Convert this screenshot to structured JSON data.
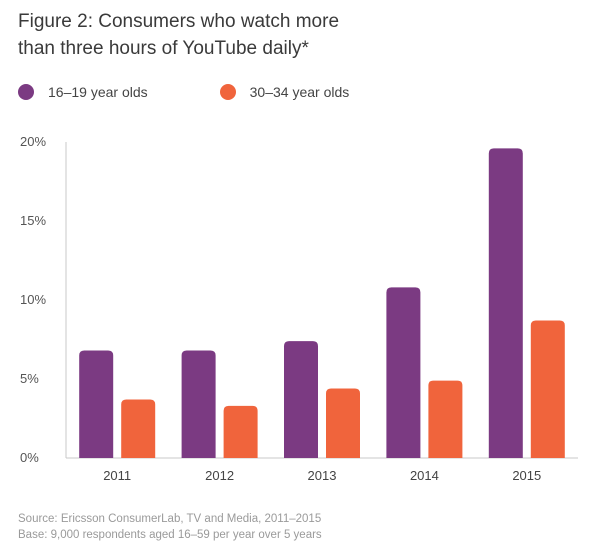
{
  "chart_data": {
    "type": "bar",
    "title": "Figure 2: Consumers who watch more than three hours of YouTube daily*",
    "title_lines": [
      "Figure 2: Consumers who watch more",
      "than three hours of YouTube daily*"
    ],
    "categories": [
      "2011",
      "2012",
      "2013",
      "2014",
      "2015"
    ],
    "series": [
      {
        "name": "16–19 year olds",
        "color": "#7b3a82",
        "values": [
          6.8,
          6.8,
          7.4,
          10.8,
          19.6
        ]
      },
      {
        "name": "30–34 year olds",
        "color": "#f0643c",
        "values": [
          3.7,
          3.3,
          4.4,
          4.9,
          8.7
        ]
      }
    ],
    "ylim": [
      0,
      20
    ],
    "yticks": [
      "0%",
      "5%",
      "10%",
      "15%",
      "20%"
    ],
    "ytick_values": [
      0,
      5,
      10,
      15,
      20
    ],
    "grid": false,
    "legend": "top-left",
    "xlabel": "",
    "ylabel": ""
  },
  "footer": {
    "source": "Source: Ericsson ConsumerLab, TV and Media, 2011–2015",
    "base": "Base: 9,000 respondents aged 16–59 per year over 5 years"
  }
}
